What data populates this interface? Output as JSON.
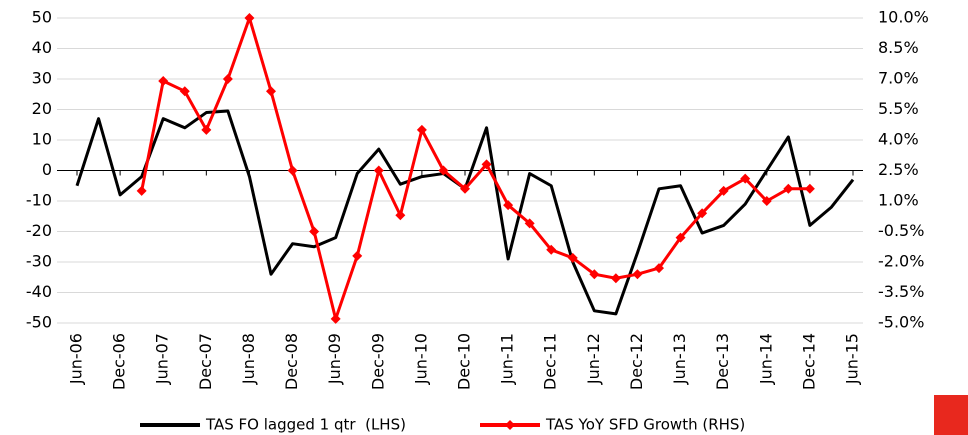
{
  "chart_data": {
    "type": "line",
    "categories": [
      "Jun-06",
      null,
      "Dec-06",
      null,
      "Jun-07",
      null,
      "Dec-07",
      null,
      "Jun-08",
      null,
      "Dec-08",
      null,
      "Jun-09",
      null,
      "Dec-09",
      null,
      "Jun-10",
      null,
      "Dec-10",
      null,
      "Jun-11",
      null,
      "Dec-11",
      null,
      "Jun-12",
      null,
      "Dec-12",
      null,
      "Jun-13",
      null,
      "Dec-13",
      null,
      "Jun-14",
      null,
      "Dec-14",
      null,
      "Jun-15"
    ],
    "series": [
      {
        "name": "TAS FO lagged 1 qtr  (LHS)",
        "color": "#000000",
        "values": [
          -5,
          17,
          -8,
          -2,
          17,
          14,
          19,
          19.5,
          -2,
          -34,
          -24,
          -25,
          -22,
          -1,
          7,
          -4.5,
          -2,
          -1,
          -6,
          14,
          -29,
          -1,
          -5,
          -30,
          -46,
          -47,
          -27,
          -6,
          -5,
          -20.5,
          -18,
          -11,
          0,
          11,
          -18,
          -12,
          -3
        ]
      },
      {
        "name": "TAS YoY SFD Growth (RHS)",
        "color": "#ff0000",
        "axis": "y2",
        "marker": "diamond",
        "values": [
          null,
          null,
          null,
          1.5,
          6.9,
          6.4,
          4.5,
          7.0,
          10.0,
          6.4,
          2.5,
          -0.5,
          -4.8,
          -1.7,
          2.5,
          0.3,
          4.5,
          2.5,
          1.6,
          2.8,
          0.8,
          -0.1,
          -1.4,
          -1.8,
          -2.6,
          -2.8,
          -2.6,
          -2.3,
          -0.8,
          0.4,
          1.5,
          2.1,
          1.0,
          1.6,
          1.6,
          null,
          null
        ]
      }
    ],
    "ylim": [
      -50,
      50
    ],
    "yticks": [
      -50,
      -40,
      -30,
      -20,
      -10,
      0,
      10,
      20,
      30,
      40,
      50
    ],
    "y2lim": [
      -5,
      10
    ],
    "y2ticks": [
      {
        "value": -5,
        "label": "-5.0%"
      },
      {
        "value": -3.5,
        "label": "-3.5%"
      },
      {
        "value": -2,
        "label": "-2.0%"
      },
      {
        "value": -0.5,
        "label": "-0.5%"
      },
      {
        "value": 1,
        "label": "1.0%"
      },
      {
        "value": 2.5,
        "label": "2.5%"
      },
      {
        "value": 4,
        "label": "4.0%"
      },
      {
        "value": 5.5,
        "label": "5.5%"
      },
      {
        "value": 7,
        "label": "7.0%"
      },
      {
        "value": 8.5,
        "label": "8.5%"
      },
      {
        "value": 10,
        "label": "10.0%"
      }
    ],
    "grid": true,
    "legend": "bottom"
  }
}
